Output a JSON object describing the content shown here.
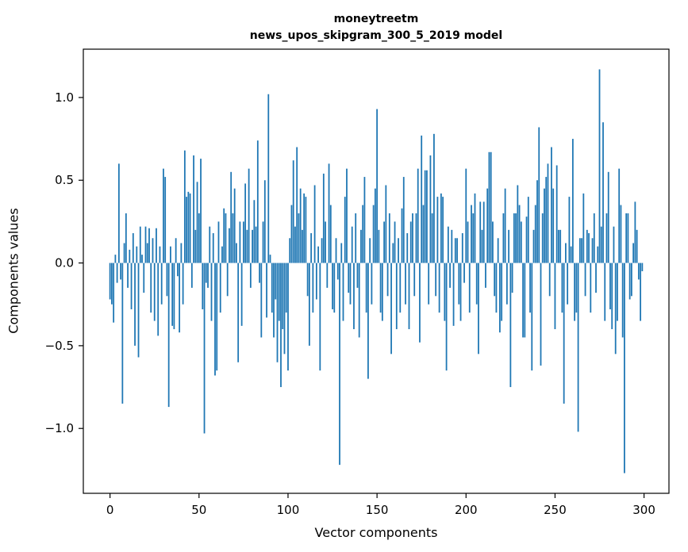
{
  "figure": {
    "background": "#ffffff"
  },
  "chart_data": {
    "type": "bar",
    "title_line1": "moneytreetm",
    "title_line2": "news_upos_skipgram_300_5_2019 model",
    "xlabel": "Vector components",
    "ylabel": "Components values",
    "bar_color": "#1f77b4",
    "grid": false,
    "legend": "none",
    "xlim": [
      -15,
      314
    ],
    "ylim": [
      -1.392,
      1.292
    ],
    "xticks": [
      0,
      50,
      100,
      150,
      200,
      250,
      300
    ],
    "yticks": [
      -1.0,
      -0.5,
      0.0,
      0.5,
      1.0
    ],
    "ytick_labels": [
      "−1.0",
      "−0.5",
      "0.0",
      "0.5",
      "1.0"
    ],
    "x_start": 0,
    "values": [
      -0.22,
      -0.25,
      -0.36,
      0.05,
      -0.12,
      0.6,
      -0.1,
      -0.85,
      0.12,
      0.3,
      -0.15,
      0.08,
      -0.28,
      0.18,
      -0.5,
      0.1,
      -0.57,
      0.22,
      0.05,
      -0.18,
      0.22,
      0.12,
      0.21,
      -0.3,
      0.15,
      -0.35,
      0.21,
      -0.44,
      0.1,
      -0.25,
      0.57,
      0.52,
      -0.2,
      -0.87,
      0.1,
      -0.38,
      -0.4,
      0.15,
      -0.08,
      -0.42,
      0.12,
      -0.25,
      0.68,
      0.4,
      0.43,
      0.42,
      -0.15,
      0.65,
      0.2,
      0.49,
      0.3,
      0.63,
      -0.28,
      -1.03,
      -0.12,
      -0.15,
      0.22,
      -0.35,
      0.18,
      -0.68,
      -0.65,
      0.25,
      -0.3,
      0.1,
      0.33,
      0.3,
      -0.2,
      0.21,
      0.55,
      0.3,
      0.45,
      0.12,
      -0.6,
      0.25,
      -0.38,
      0.25,
      0.48,
      0.2,
      0.57,
      -0.15,
      0.2,
      0.38,
      0.22,
      0.74,
      -0.12,
      -0.45,
      0.25,
      0.5,
      -0.33,
      1.02,
      0.05,
      -0.3,
      -0.45,
      -0.22,
      -0.6,
      -0.35,
      -0.75,
      -0.4,
      -0.55,
      -0.3,
      -0.65,
      0.15,
      0.35,
      0.62,
      0.22,
      0.7,
      0.3,
      0.45,
      0.2,
      0.42,
      0.4,
      -0.2,
      -0.5,
      0.18,
      -0.3,
      0.47,
      -0.22,
      0.1,
      -0.65,
      0.15,
      0.54,
      0.25,
      -0.15,
      0.6,
      0.35,
      -0.28,
      -0.3,
      0.15,
      -0.1,
      -1.22,
      0.12,
      -0.35,
      0.4,
      0.57,
      -0.18,
      -0.25,
      0.22,
      -0.4,
      0.3,
      -0.15,
      -0.45,
      0.2,
      0.35,
      0.52,
      -0.3,
      -0.7,
      0.15,
      -0.25,
      0.35,
      0.45,
      0.93,
      0.2,
      -0.3,
      -0.35,
      0.25,
      0.47,
      -0.2,
      0.3,
      -0.55,
      0.12,
      0.25,
      -0.4,
      0.15,
      -0.3,
      0.33,
      0.52,
      -0.25,
      0.18,
      -0.4,
      0.25,
      0.3,
      -0.2,
      0.3,
      0.57,
      -0.48,
      0.77,
      0.35,
      0.56,
      0.56,
      -0.25,
      0.65,
      0.3,
      0.78,
      -0.2,
      0.4,
      -0.3,
      0.42,
      0.4,
      -0.35,
      -0.65,
      0.22,
      -0.15,
      0.2,
      -0.38,
      0.15,
      0.15,
      -0.25,
      -0.35,
      0.18,
      -0.12,
      0.57,
      0.25,
      -0.3,
      0.35,
      0.3,
      0.42,
      -0.25,
      -0.55,
      0.37,
      0.2,
      0.37,
      -0.15,
      0.45,
      0.67,
      0.67,
      0.25,
      -0.2,
      -0.3,
      0.15,
      -0.42,
      -0.35,
      0.3,
      0.45,
      -0.25,
      0.2,
      -0.75,
      -0.18,
      0.3,
      0.3,
      0.47,
      0.35,
      0.25,
      -0.45,
      -0.45,
      0.28,
      0.4,
      -0.3,
      -0.65,
      0.2,
      0.35,
      0.5,
      0.82,
      -0.62,
      0.3,
      0.45,
      0.52,
      0.6,
      -0.2,
      0.7,
      0.45,
      -0.4,
      0.59,
      0.2,
      0.2,
      -0.3,
      -0.85,
      0.12,
      -0.25,
      0.4,
      0.1,
      0.75,
      -0.35,
      -0.3,
      -1.02,
      0.15,
      0.15,
      0.42,
      -0.2,
      0.2,
      0.18,
      -0.3,
      0.15,
      0.3,
      -0.18,
      0.1,
      1.17,
      0.22,
      0.85,
      -0.35,
      0.3,
      0.55,
      -0.28,
      -0.4,
      0.22,
      -0.55,
      -0.35,
      0.57,
      0.35,
      -0.45,
      -1.27,
      0.3,
      0.3,
      -0.22,
      -0.2,
      0.12,
      0.37,
      0.2,
      -0.1,
      -0.35,
      -0.05
    ]
  }
}
